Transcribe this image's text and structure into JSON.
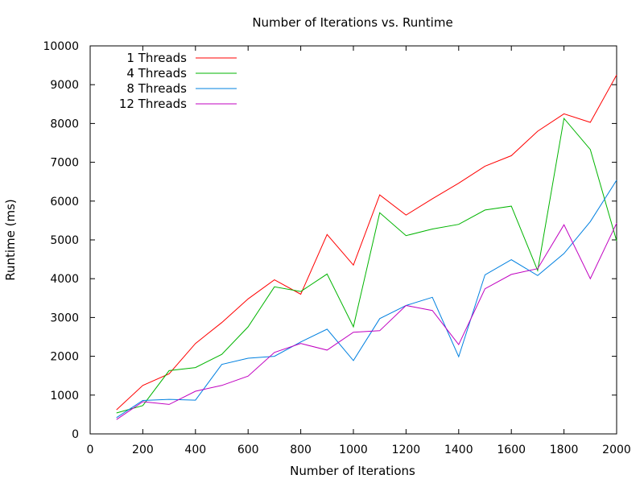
{
  "chart_data": {
    "type": "line",
    "title": "Number of Iterations vs. Runtime",
    "xlabel": "Number of Iterations",
    "ylabel": "Runtime (ms)",
    "xlim": [
      0,
      2000
    ],
    "ylim": [
      0,
      10000
    ],
    "xticks": [
      "0",
      "200",
      "400",
      "600",
      "800",
      "1000",
      "1200",
      "1400",
      "1600",
      "1800",
      "2000"
    ],
    "yticks": [
      "0",
      "1000",
      "2000",
      "3000",
      "4000",
      "5000",
      "6000",
      "7000",
      "8000",
      "9000",
      "10000"
    ],
    "grid": false,
    "legend_position": "top-left",
    "x": [
      100,
      200,
      300,
      400,
      500,
      600,
      700,
      800,
      900,
      1000,
      1100,
      1200,
      1300,
      1400,
      1500,
      1600,
      1700,
      1800,
      1900,
      2000
    ],
    "series": [
      {
        "name": "1 Threads",
        "color": "#ff0000",
        "values": [
          620,
          1250,
          1550,
          2330,
          2870,
          3480,
          3970,
          3600,
          5140,
          4350,
          6160,
          5640,
          6060,
          6460,
          6900,
          7170,
          7800,
          8250,
          8030,
          9250
        ]
      },
      {
        "name": "4 Threads",
        "color": "#00b400",
        "values": [
          540,
          730,
          1630,
          1710,
          2050,
          2760,
          3790,
          3670,
          4120,
          2760,
          5700,
          5110,
          5280,
          5400,
          5770,
          5870,
          4210,
          8130,
          7330,
          4970
        ]
      },
      {
        "name": "8 Threads",
        "color": "#0080e0",
        "values": [
          420,
          860,
          890,
          870,
          1790,
          1950,
          2000,
          2370,
          2700,
          1890,
          2970,
          3310,
          3520,
          1990,
          4100,
          4490,
          4080,
          4650,
          5470,
          6540
        ]
      },
      {
        "name": "12 Threads",
        "color": "#c000c0",
        "values": [
          370,
          830,
          760,
          1100,
          1250,
          1490,
          2100,
          2330,
          2160,
          2620,
          2660,
          3310,
          3180,
          2300,
          3740,
          4110,
          4260,
          5390,
          4000,
          5430
        ]
      }
    ]
  }
}
